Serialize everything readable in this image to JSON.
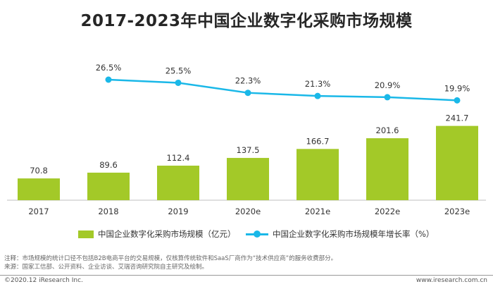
{
  "title": "2017-2023年中国企业数字化采购市场规模",
  "colors": {
    "bar": "#a3c928",
    "line": "#1ab8e8"
  },
  "chart_data": {
    "type": "bar",
    "categories": [
      "2017",
      "2018",
      "2019",
      "2020e",
      "2021e",
      "2022e",
      "2023e"
    ],
    "series": [
      {
        "name": "中国企业数字化采购市场规模（亿元）",
        "type": "bar",
        "values": [
          70.8,
          89.6,
          112.4,
          137.5,
          166.7,
          201.6,
          241.7
        ]
      },
      {
        "name": "中国企业数字化采购市场规模年增长率（%）",
        "type": "line",
        "values": [
          null,
          26.5,
          25.5,
          22.3,
          21.3,
          20.9,
          19.9
        ]
      }
    ],
    "bar_labels": [
      "70.8",
      "89.6",
      "112.4",
      "137.5",
      "166.7",
      "201.6",
      "241.7"
    ],
    "line_labels": [
      "",
      "26.5%",
      "25.5%",
      "22.3%",
      "21.3%",
      "20.9%",
      "19.9%"
    ],
    "legend_position": "bottom",
    "grid": false
  },
  "notes": {
    "line1": "注释：市场规模的统计口径不包括B2B电商平台的交易规模，仅核算传统软件和SaaS厂商作为“技术供应商”的服务收费部分。",
    "line2": "来源：国家工信部、公开资料、企业访谈、艾瑞咨询研究院自主研究及绘制。"
  },
  "footer": {
    "copyright": "©2020.12 iResearch Inc.",
    "website": "www.iresearch.com.cn"
  }
}
